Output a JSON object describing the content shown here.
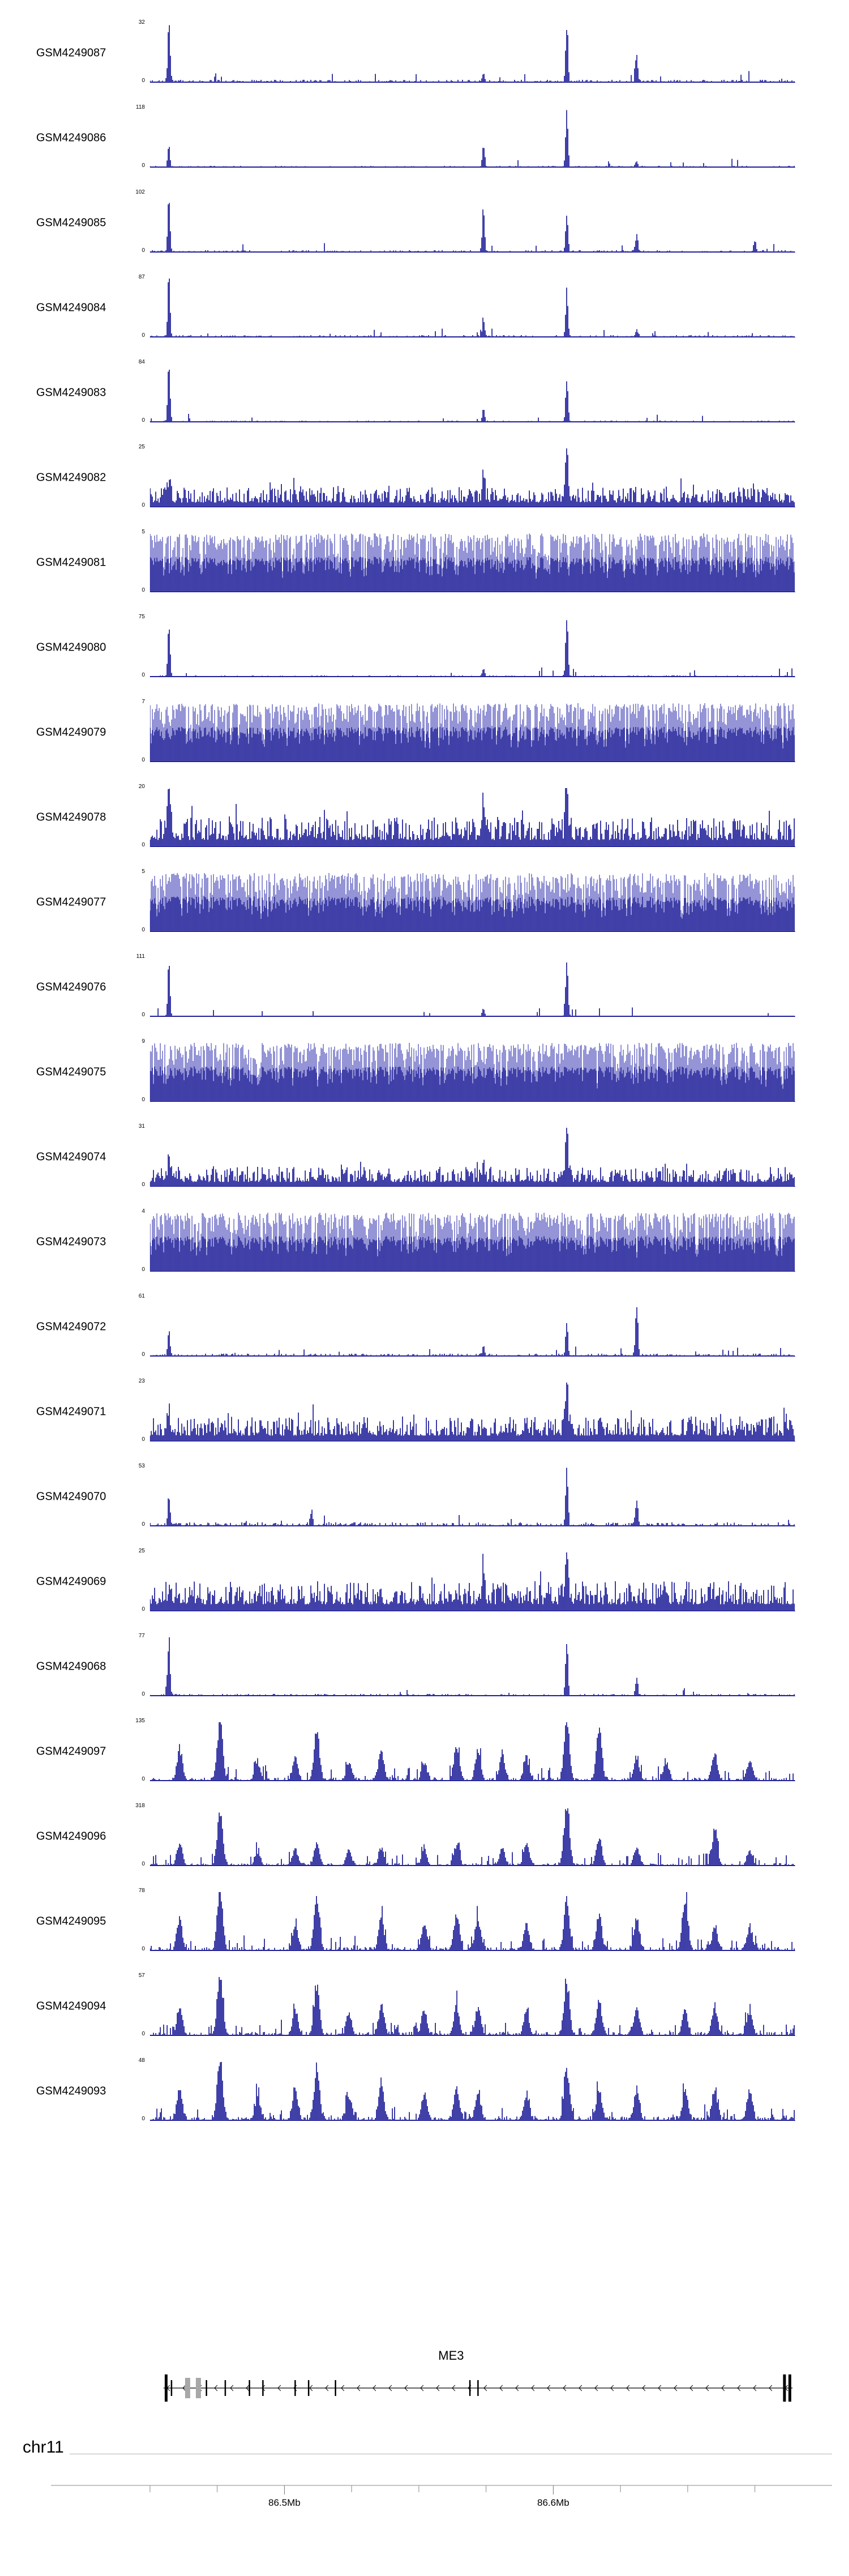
{
  "chart_data": {
    "type": "area",
    "subtype": "genome-browser-coverage-tracks",
    "region": {
      "chrom": "chr11",
      "start_mb": 86.45,
      "end_mb": 86.69
    },
    "signal_color": "#00008b",
    "signal_color_light": "#7070c8",
    "y_bottom_label": "0",
    "axis": {
      "chrom_label": "chr11",
      "minor_ticks_mb": [
        86.45,
        86.475,
        86.5,
        86.525,
        86.55,
        86.575,
        86.6,
        86.625,
        86.65,
        86.675
      ],
      "major_ticks_mb": [
        86.5,
        86.6
      ],
      "major_tick_labels": [
        "86.5Mb",
        "86.6Mb"
      ]
    },
    "gene_track": {
      "gene_name": "ME3",
      "strand": "left",
      "label_pos_mb": 86.562,
      "line_span_mb": [
        86.455,
        86.689
      ],
      "exons": [
        {
          "mb": 86.456,
          "kind": "tall"
        },
        {
          "mb": 86.458,
          "kind": "tick"
        },
        {
          "mb": 86.464,
          "kind": "utr"
        },
        {
          "mb": 86.468,
          "kind": "utr"
        },
        {
          "mb": 86.471,
          "kind": "tick"
        },
        {
          "mb": 86.478,
          "kind": "tick"
        },
        {
          "mb": 86.487,
          "kind": "tick"
        },
        {
          "mb": 86.492,
          "kind": "tick"
        },
        {
          "mb": 86.504,
          "kind": "tick"
        },
        {
          "mb": 86.509,
          "kind": "tick"
        },
        {
          "mb": 86.519,
          "kind": "tick"
        },
        {
          "mb": 86.569,
          "kind": "tick"
        },
        {
          "mb": 86.572,
          "kind": "tick"
        },
        {
          "mb": 86.686,
          "kind": "tall"
        },
        {
          "mb": 86.688,
          "kind": "tall"
        }
      ]
    },
    "tracks": [
      {
        "label": "GSM4249087",
        "ylim": [
          0,
          32
        ],
        "profile": "sparse",
        "noise": 0.05,
        "peaks": [
          [
            86.457,
            30
          ],
          [
            86.574,
            5
          ],
          [
            86.605,
            32
          ],
          [
            86.631,
            15
          ]
        ]
      },
      {
        "label": "GSM4249086",
        "ylim": [
          0,
          118
        ],
        "profile": "sparse",
        "noise": 0.03,
        "peaks": [
          [
            86.457,
            40
          ],
          [
            86.574,
            40
          ],
          [
            86.605,
            118
          ],
          [
            86.631,
            12
          ]
        ]
      },
      {
        "label": "GSM4249085",
        "ylim": [
          0,
          102
        ],
        "profile": "sparse",
        "noise": 0.04,
        "peaks": [
          [
            86.457,
            92
          ],
          [
            86.574,
            75
          ],
          [
            86.605,
            72
          ],
          [
            86.631,
            30
          ],
          [
            86.675,
            22
          ]
        ]
      },
      {
        "label": "GSM4249084",
        "ylim": [
          0,
          87
        ],
        "profile": "sparse",
        "noise": 0.04,
        "peaks": [
          [
            86.457,
            87
          ],
          [
            86.574,
            25
          ],
          [
            86.605,
            65
          ],
          [
            86.631,
            12
          ]
        ]
      },
      {
        "label": "GSM4249083",
        "ylim": [
          0,
          84
        ],
        "profile": "sparse",
        "noise": 0.03,
        "peaks": [
          [
            86.457,
            84
          ],
          [
            86.574,
            20
          ],
          [
            86.605,
            60
          ]
        ]
      },
      {
        "label": "GSM4249082",
        "ylim": [
          0,
          25
        ],
        "profile": "noisy",
        "noise": 0.2,
        "peaks": [
          [
            86.457,
            8
          ],
          [
            86.574,
            10
          ],
          [
            86.605,
            25
          ]
        ]
      },
      {
        "label": "GSM4249081",
        "ylim": [
          0,
          5
        ],
        "profile": "dense",
        "noise": 1.0,
        "peaks": []
      },
      {
        "label": "GSM4249080",
        "ylim": [
          0,
          75
        ],
        "profile": "sparse",
        "noise": 0.03,
        "peaks": [
          [
            86.457,
            65
          ],
          [
            86.574,
            12
          ],
          [
            86.605,
            75
          ]
        ]
      },
      {
        "label": "GSM4249079",
        "ylim": [
          0,
          7
        ],
        "profile": "dense",
        "noise": 1.0,
        "peaks": []
      },
      {
        "label": "GSM4249078",
        "ylim": [
          0,
          20
        ],
        "profile": "noisy",
        "noise": 0.3,
        "peaks": [
          [
            86.457,
            18
          ],
          [
            86.574,
            10
          ],
          [
            86.605,
            20
          ]
        ]
      },
      {
        "label": "GSM4249077",
        "ylim": [
          0,
          5
        ],
        "profile": "dense",
        "noise": 1.0,
        "peaks": []
      },
      {
        "label": "GSM4249076",
        "ylim": [
          0,
          111
        ],
        "profile": "sparse",
        "noise": 0.02,
        "peaks": [
          [
            86.457,
            95
          ],
          [
            86.574,
            15
          ],
          [
            86.605,
            111
          ]
        ]
      },
      {
        "label": "GSM4249075",
        "ylim": [
          0,
          9
        ],
        "profile": "dense",
        "noise": 1.0,
        "peaks": []
      },
      {
        "label": "GSM4249074",
        "ylim": [
          0,
          31
        ],
        "profile": "noisy",
        "noise": 0.2,
        "peaks": [
          [
            86.457,
            10
          ],
          [
            86.574,
            8
          ],
          [
            86.605,
            31
          ]
        ]
      },
      {
        "label": "GSM4249073",
        "ylim": [
          0,
          4
        ],
        "profile": "dense",
        "noise": 1.0,
        "peaks": []
      },
      {
        "label": "GSM4249072",
        "ylim": [
          0,
          61
        ],
        "profile": "sparse",
        "noise": 0.05,
        "peaks": [
          [
            86.457,
            25
          ],
          [
            86.574,
            10
          ],
          [
            86.605,
            35
          ],
          [
            86.631,
            55
          ]
        ]
      },
      {
        "label": "GSM4249071",
        "ylim": [
          0,
          23
        ],
        "profile": "noisy",
        "noise": 0.25,
        "peaks": [
          [
            86.457,
            8
          ],
          [
            86.605,
            23
          ]
        ]
      },
      {
        "label": "GSM4249070",
        "ylim": [
          0,
          53
        ],
        "profile": "sparse",
        "noise": 0.07,
        "peaks": [
          [
            86.457,
            25
          ],
          [
            86.51,
            13
          ],
          [
            86.605,
            53
          ],
          [
            86.631,
            25
          ]
        ]
      },
      {
        "label": "GSM4249069",
        "ylim": [
          0,
          25
        ],
        "profile": "noisy",
        "noise": 0.3,
        "peaks": [
          [
            86.574,
            12
          ],
          [
            86.605,
            25
          ]
        ]
      },
      {
        "label": "GSM4249068",
        "ylim": [
          0,
          77
        ],
        "profile": "sparse",
        "noise": 0.04,
        "peaks": [
          [
            86.457,
            77
          ],
          [
            86.605,
            70
          ],
          [
            86.631,
            25
          ]
        ]
      },
      {
        "label": "GSM4249097",
        "ylim": [
          0,
          135
        ],
        "profile": "peaky",
        "noise": 0.06,
        "peaks": [
          [
            86.461,
            70
          ],
          [
            86.476,
            135
          ],
          [
            86.49,
            40
          ],
          [
            86.504,
            50
          ],
          [
            86.512,
            115
          ],
          [
            86.524,
            40
          ],
          [
            86.536,
            65
          ],
          [
            86.552,
            40
          ],
          [
            86.564,
            75
          ],
          [
            86.572,
            70
          ],
          [
            86.581,
            60
          ],
          [
            86.59,
            50
          ],
          [
            86.605,
            135
          ],
          [
            86.617,
            120
          ],
          [
            86.631,
            50
          ],
          [
            86.642,
            40
          ],
          [
            86.66,
            60
          ],
          [
            86.673,
            45
          ]
        ]
      },
      {
        "label": "GSM4249096",
        "ylim": [
          0,
          318
        ],
        "profile": "peaky",
        "noise": 0.05,
        "peaks": [
          [
            86.461,
            120
          ],
          [
            86.476,
            280
          ],
          [
            86.49,
            70
          ],
          [
            86.504,
            90
          ],
          [
            86.512,
            120
          ],
          [
            86.524,
            80
          ],
          [
            86.536,
            95
          ],
          [
            86.552,
            80
          ],
          [
            86.564,
            110
          ],
          [
            86.581,
            95
          ],
          [
            86.59,
            120
          ],
          [
            86.605,
            318
          ],
          [
            86.617,
            150
          ],
          [
            86.631,
            90
          ],
          [
            86.66,
            190
          ],
          [
            86.673,
            80
          ]
        ]
      },
      {
        "label": "GSM4249095",
        "ylim": [
          0,
          78
        ],
        "profile": "peaky",
        "noise": 0.07,
        "peaks": [
          [
            86.461,
            40
          ],
          [
            86.476,
            78
          ],
          [
            86.504,
            30
          ],
          [
            86.512,
            70
          ],
          [
            86.536,
            42
          ],
          [
            86.552,
            35
          ],
          [
            86.564,
            47
          ],
          [
            86.572,
            40
          ],
          [
            86.59,
            35
          ],
          [
            86.605,
            62
          ],
          [
            86.617,
            47
          ],
          [
            86.631,
            40
          ],
          [
            86.649,
            70
          ],
          [
            86.66,
            30
          ],
          [
            86.673,
            30
          ]
        ]
      },
      {
        "label": "GSM4249094",
        "ylim": [
          0,
          57
        ],
        "profile": "peaky",
        "noise": 0.07,
        "peaks": [
          [
            86.461,
            26
          ],
          [
            86.476,
            57
          ],
          [
            86.504,
            23
          ],
          [
            86.512,
            46
          ],
          [
            86.524,
            20
          ],
          [
            86.536,
            28
          ],
          [
            86.552,
            23
          ],
          [
            86.564,
            28
          ],
          [
            86.572,
            26
          ],
          [
            86.59,
            23
          ],
          [
            86.605,
            51
          ],
          [
            86.617,
            34
          ],
          [
            86.631,
            26
          ],
          [
            86.649,
            23
          ],
          [
            86.66,
            28
          ],
          [
            86.673,
            23
          ]
        ]
      },
      {
        "label": "GSM4249093",
        "ylim": [
          0,
          48
        ],
        "profile": "peaky",
        "noise": 0.08,
        "peaks": [
          [
            86.461,
            24
          ],
          [
            86.476,
            46
          ],
          [
            86.49,
            19
          ],
          [
            86.504,
            24
          ],
          [
            86.512,
            41
          ],
          [
            86.524,
            19
          ],
          [
            86.536,
            26
          ],
          [
            86.552,
            22
          ],
          [
            86.564,
            24
          ],
          [
            86.572,
            22
          ],
          [
            86.59,
            19
          ],
          [
            86.605,
            41
          ],
          [
            86.617,
            26
          ],
          [
            86.631,
            24
          ],
          [
            86.649,
            22
          ],
          [
            86.66,
            24
          ],
          [
            86.673,
            22
          ]
        ]
      }
    ]
  }
}
